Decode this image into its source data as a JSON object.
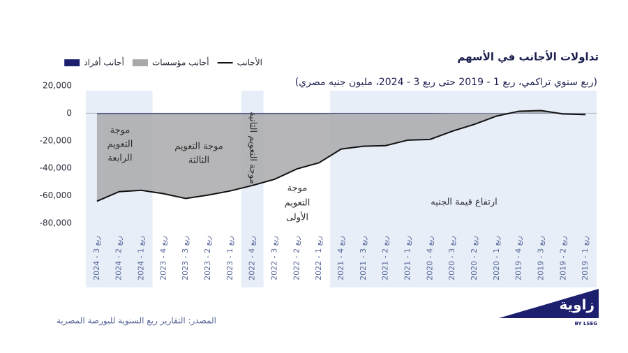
{
  "chart_data": {
    "type": "area",
    "title": "تداولات الأجانب في الأسهم",
    "subtitle": "(ربع سنوي تراكمي، ربع 1 - 2019 حتى ربع 3 - 2024، مليون جنيه مصري)",
    "categories": [
      "ربع 3 - 2024",
      "ربع 2 - 2024",
      "ربع 1 - 2024",
      "ربع 4 - 2023",
      "ربع 3 - 2023",
      "ربع 2 - 2023",
      "ربع 1 - 2023",
      "ربع 4 - 2022",
      "ربع 3 - 2022",
      "ربع 2 - 2022",
      "ربع 1 - 2022",
      "ربع 4 - 2021",
      "ربع 3 - 2021",
      "ربع 2 - 2021",
      "ربع 1 - 2021",
      "ربع 4 - 2020",
      "ربع 3 - 2020",
      "ربع 2 - 2020",
      "ربع 1 - 2020",
      "ربع 4 - 2019",
      "ربع 3 - 2019",
      "ربع 2 - 2019",
      "ربع 1 - 2019"
    ],
    "series": [
      {
        "name": "أجانب أفراد",
        "color": "#1b1f6e",
        "style": "area",
        "values": [
          -400,
          -400,
          -400,
          -400,
          -400,
          -400,
          -400,
          -400,
          -400,
          -400,
          -400,
          -300,
          -300,
          -300,
          -300,
          -300,
          -200,
          -200,
          -200,
          -100,
          -100,
          -100,
          -100
        ]
      },
      {
        "name": "أجانب مؤسسات",
        "color": "#a9a9ab",
        "style": "area",
        "values": [
          -63600,
          -56600,
          -55600,
          -58100,
          -61600,
          -59100,
          -56100,
          -52100,
          -47600,
          -40100,
          -35600,
          -25700,
          -23700,
          -23200,
          -19200,
          -18700,
          -12800,
          -7800,
          -1800,
          1600,
          2100,
          -400,
          -900
        ]
      },
      {
        "name": "الأجانب",
        "color": "#111111",
        "style": "line",
        "values": [
          -64000,
          -57000,
          -56000,
          -58500,
          -62000,
          -59500,
          -56500,
          -52500,
          -48000,
          -40500,
          -36000,
          -26000,
          -24000,
          -23500,
          -19500,
          -19000,
          -13000,
          -8000,
          -2000,
          1500,
          2000,
          -500,
          -1000
        ]
      }
    ],
    "ylim": [
      -80000,
      20000
    ],
    "yticks": [
      {
        "value": -80000,
        "label": "-80,000"
      },
      {
        "value": -60000,
        "label": "-60,000"
      },
      {
        "value": -40000,
        "label": "-40,000"
      },
      {
        "value": -20000,
        "label": "-20,000"
      },
      0,
      {
        "value": 20000,
        "label": "20,000"
      }
    ],
    "annotations": [
      {
        "lines": [
          "موجة",
          "التعويم",
          "الرابعة"
        ]
      },
      {
        "lines": [
          "موجة التعويم",
          "الثالثة"
        ]
      },
      {
        "lines": [
          "موجة التعويم الثانية"
        ]
      },
      {
        "lines": [
          "موجة",
          "التعويم",
          "الأولى"
        ]
      },
      {
        "lines": [
          "ارتفاع قيمة الجنيه"
        ]
      }
    ],
    "source": "المصدر:  التقارير ربع السنوية للبورصة المصرية",
    "logo": {
      "name": "زاوية",
      "tagline": "BY LSEG"
    }
  }
}
